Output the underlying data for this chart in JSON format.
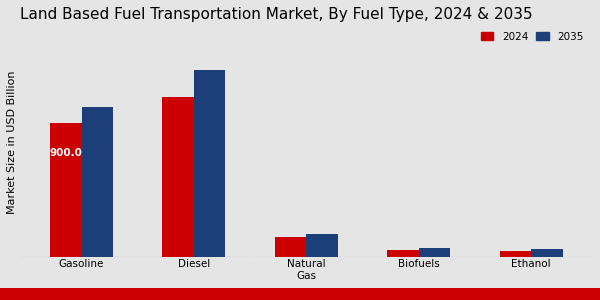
{
  "title": "Land Based Fuel Transportation Market, By Fuel Type, 2024 & 2035",
  "ylabel": "Market Size in USD Billion",
  "categories": [
    "Gasoline",
    "Diesel",
    "Natural\nGas",
    "Biofuels",
    "Ethanol"
  ],
  "values_2024": [
    900,
    1080,
    130,
    45,
    38
  ],
  "values_2035": [
    1010,
    1260,
    155,
    58,
    52
  ],
  "color_2024": "#cc0000",
  "color_2035": "#1c3f7a",
  "annotation_value": "900.0",
  "background_color": "#e5e5e5",
  "bar_width": 0.28,
  "legend_labels": [
    "2024",
    "2035"
  ],
  "title_fontsize": 11,
  "axis_label_fontsize": 8,
  "tick_fontsize": 7.5,
  "ylim_max": 1550
}
